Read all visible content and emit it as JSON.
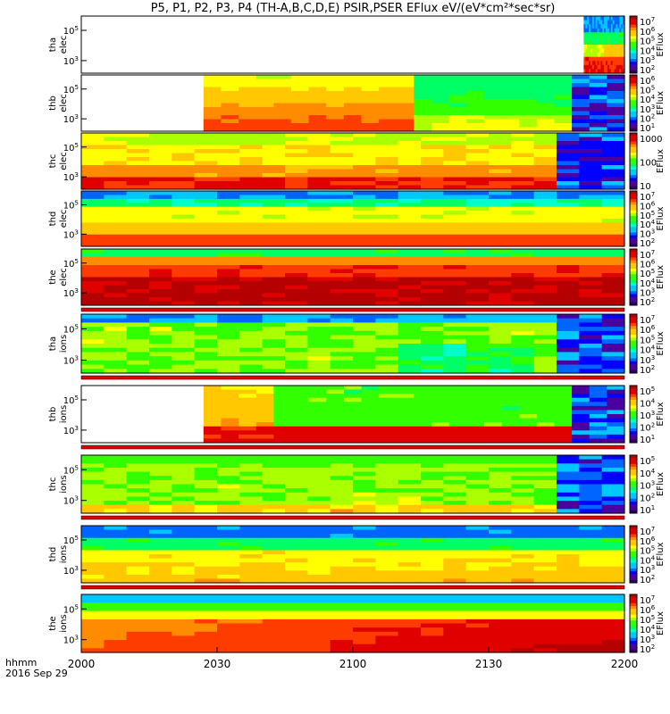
{
  "title": "P5, P1, P2, P3, P4 (TH-A,B,C,D,E) PSIR,PSER EFlux eV/(eV*cm²*sec*sr)",
  "time_axis": {
    "unit_label": "hhmm",
    "date_label": "2016 Sep 29",
    "ticks": [
      "2000",
      "2030",
      "2100",
      "2130",
      "2200"
    ]
  },
  "chart_data": {
    "type": "heatmap",
    "title": "P5, P1, P2, P3, P4 (TH-A,B,C,D,E) PSIR,PSER EFlux eV/(eV*cm²*sec*sr)",
    "xlabel": "hhmm",
    "x_range_hhmm": [
      "2000",
      "2200"
    ],
    "x_ticks": [
      "2000",
      "2030",
      "2100",
      "2130",
      "2200"
    ],
    "y_scale": "log",
    "colormap": "rainbow (purple-blue-cyan-green-yellow-orange-red)",
    "panels": [
      {
        "name": "tha elec",
        "ylabel": [
          "tha",
          "elec"
        ],
        "y_ticks": [
          "10^3",
          "10^5"
        ],
        "colorbar_label": "EFlux",
        "colorbar_ticks": [
          "10^2",
          "10^3",
          "10^4",
          "10^5",
          "10^6",
          "10^7"
        ],
        "data_start_hhmm": "2151",
        "data_end_hhmm": "2200",
        "dominant_level": "mixed, orange-red at bottom"
      },
      {
        "name": "thb elec",
        "ylabel": [
          "thb",
          "elec"
        ],
        "y_ticks": [
          "10^3",
          "10^5"
        ],
        "colorbar_label": "EFlux",
        "colorbar_ticks": [
          "10^1",
          "10^2",
          "10^3",
          "10^4",
          "10^5",
          "10^6"
        ],
        "data_start_hhmm": "2027",
        "data_end_hhmm": "2200",
        "dominant_level": "yellow then green"
      },
      {
        "name": "thc elec",
        "ylabel": [
          "thc",
          "elec"
        ],
        "y_ticks": [
          "10^3",
          "10^5"
        ],
        "colorbar_label": "EFlux",
        "colorbar_ticks": [
          "10",
          "100",
          "1000"
        ],
        "data_start_hhmm": "2000",
        "data_end_hhmm": "2200",
        "dominant_level": "yellow-orange, red at bottom"
      },
      {
        "name": "thd elec",
        "ylabel": [
          "thd",
          "elec"
        ],
        "y_ticks": [
          "10^3",
          "10^5"
        ],
        "colorbar_label": "EFlux",
        "colorbar_ticks": [
          "10^2",
          "10^3",
          "10^4",
          "10^5",
          "10^6",
          "10^7"
        ],
        "data_start_hhmm": "2000",
        "data_end_hhmm": "2200",
        "dominant_level": "blue top, yellow-orange-red bottom"
      },
      {
        "name": "the elec",
        "ylabel": [
          "the",
          "elec"
        ],
        "y_ticks": [
          "10^3",
          "10^5"
        ],
        "colorbar_label": "EFlux",
        "colorbar_ticks": [
          "10^2",
          "10^3",
          "10^4",
          "10^5",
          "10^6",
          "10^7"
        ],
        "data_start_hhmm": "2000",
        "data_end_hhmm": "2200",
        "dominant_level": "dark red"
      },
      {
        "name": "tha ions",
        "ylabel": [
          "tha",
          "ions"
        ],
        "y_ticks": [
          "10^3",
          "10^5"
        ],
        "colorbar_label": "EFlux",
        "colorbar_ticks": [
          "10^2",
          "10^3",
          "10^4",
          "10^5",
          "10^6",
          "10^7"
        ],
        "data_start_hhmm": "2000",
        "data_end_hhmm": "2200",
        "dominant_level": "green"
      },
      {
        "name": "thb ions",
        "ylabel": [
          "thb",
          "ions"
        ],
        "y_ticks": [
          "10^3",
          "10^5"
        ],
        "colorbar_label": "EFlux",
        "colorbar_ticks": [
          "10^1",
          "10^2",
          "10^3",
          "10^4",
          "10^5"
        ],
        "data_start_hhmm": "2027",
        "data_end_hhmm": "2200",
        "dominant_level": "yellow then green, red at bottom"
      },
      {
        "name": "thc ions",
        "ylabel": [
          "thc",
          "ions"
        ],
        "y_ticks": [
          "10^3",
          "10^5"
        ],
        "colorbar_label": "EFlux",
        "colorbar_ticks": [
          "10^1",
          "10^2",
          "10^3",
          "10^4",
          "10^5"
        ],
        "data_start_hhmm": "2000",
        "data_end_hhmm": "2200",
        "dominant_level": "green"
      },
      {
        "name": "thd ions",
        "ylabel": [
          "thd",
          "ions"
        ],
        "y_ticks": [
          "10^3",
          "10^5"
        ],
        "colorbar_label": "EFlux",
        "colorbar_ticks": [
          "10^2",
          "10^3",
          "10^4",
          "10^5",
          "10^6",
          "10^7"
        ],
        "data_start_hhmm": "2000",
        "data_end_hhmm": "2200",
        "dominant_level": "blue top, green-yellow bottom"
      },
      {
        "name": "the ions",
        "ylabel": [
          "the",
          "ions"
        ],
        "y_ticks": [
          "10^3",
          "10^5"
        ],
        "colorbar_label": "EFlux",
        "colorbar_ticks": [
          "10^2",
          "10^3",
          "10^4",
          "10^5",
          "10^6",
          "10^7"
        ],
        "data_start_hhmm": "2000",
        "data_end_hhmm": "2200",
        "dominant_level": "orange-red"
      }
    ]
  }
}
